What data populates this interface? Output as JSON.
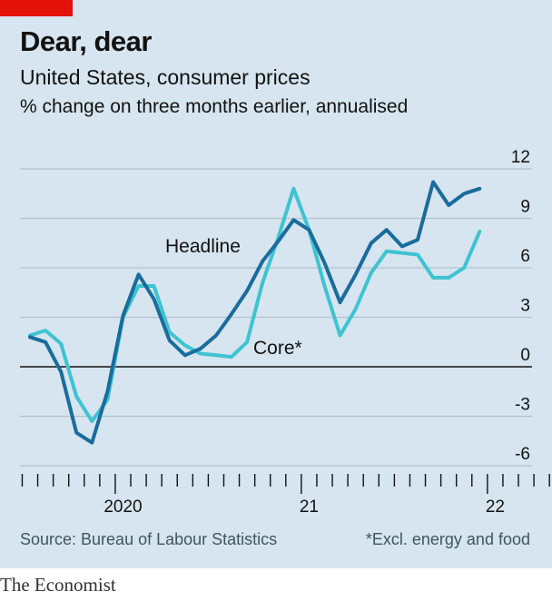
{
  "header": {
    "title": "Dear, dear",
    "subtitle": "United States, consumer prices",
    "unit": "% change on three months earlier, annualised"
  },
  "footer": {
    "source": "Source: Bureau of Labour Statistics",
    "note": "*Excl. energy and food",
    "brand": "The Economist"
  },
  "colors": {
    "background": "#d6e5ef",
    "accent": "#e3120b",
    "headline": "#1a6c9c",
    "core": "#3ec3d1",
    "gridline": "#b3c3cd"
  },
  "chart_data": {
    "type": "line",
    "y_ticks": [
      "12",
      "9",
      "6",
      "3",
      "0",
      "-3",
      "-6"
    ],
    "x_ticks": [
      "2020",
      "21",
      "22"
    ],
    "ylim": [
      -6,
      12
    ],
    "grid": true,
    "axis_side": "right",
    "x": [
      "2019-07",
      "2019-08",
      "2019-09",
      "2019-10",
      "2019-11",
      "2019-12",
      "2020-01",
      "2020-02",
      "2020-03",
      "2020-04",
      "2020-05",
      "2020-06",
      "2020-07",
      "2020-08",
      "2020-09",
      "2020-10",
      "2020-11",
      "2020-12",
      "2021-01",
      "2021-02",
      "2021-03",
      "2021-04",
      "2021-05",
      "2021-06",
      "2021-07",
      "2021-08",
      "2021-09",
      "2021-10",
      "2021-11",
      "2021-12",
      "2022-01",
      "2022-02",
      "2022-03",
      "2022-04",
      "2022-05",
      "2022-06"
    ],
    "series": [
      {
        "name": "Headline",
        "label_anchor": "2020-09",
        "values": [
          null,
          null,
          null,
          null,
          null,
          null,
          1.8,
          1.5,
          -0.3,
          -4,
          -4.6,
          -1.5,
          3.1,
          5.6,
          4.1,
          1.6,
          0.7,
          1.1,
          1.9,
          3.2,
          4.6,
          6.4,
          7.6,
          8.9,
          8.3,
          6.3,
          3.9,
          5.6,
          7.5,
          8.3,
          7.3,
          7.7,
          11.2,
          9.8,
          10.5,
          10.8
        ]
      },
      {
        "name": "Core*",
        "label_anchor": "2021-08",
        "values": [
          null,
          null,
          null,
          null,
          null,
          null,
          1.9,
          2.2,
          1.4,
          -1.8,
          -3.3,
          -2,
          3,
          4.9,
          4.9,
          2.1,
          1.3,
          0.8,
          0.7,
          0.6,
          1.5,
          5.1,
          7.8,
          10.8,
          8.3,
          4.9,
          1.9,
          3.5,
          5.7,
          7,
          6.9,
          6.8,
          5.4,
          5.4,
          6,
          8.2
        ]
      }
    ]
  }
}
